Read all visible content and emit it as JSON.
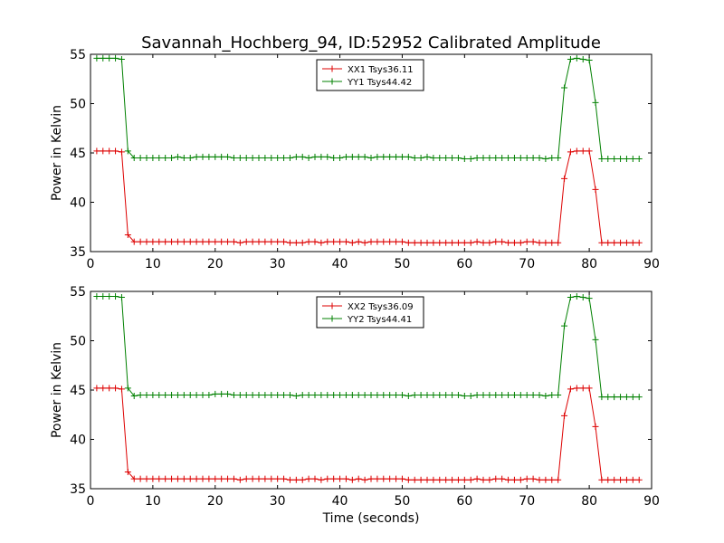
{
  "figure": {
    "title": "Savannah_Hochberg_94, ID:52952 Calibrated Amplitude"
  },
  "chart_data": [
    {
      "type": "line",
      "title": "Savannah_Hochberg_94, ID:52952 Calibrated Amplitude",
      "xlabel": "",
      "ylabel": "Power in Kelvin",
      "xlim": [
        0,
        90
      ],
      "ylim": [
        35,
        55
      ],
      "xticks": [
        "0",
        "10",
        "20",
        "30",
        "40",
        "50",
        "60",
        "70",
        "80",
        "90"
      ],
      "yticks": [
        "35",
        "40",
        "45",
        "50",
        "55"
      ],
      "grid": false,
      "legend": "top-center",
      "x": [
        1,
        2,
        3,
        4,
        5,
        6,
        7,
        8,
        9,
        10,
        11,
        12,
        13,
        14,
        15,
        16,
        17,
        18,
        19,
        20,
        21,
        22,
        23,
        24,
        25,
        26,
        27,
        28,
        29,
        30,
        31,
        32,
        33,
        34,
        35,
        36,
        37,
        38,
        39,
        40,
        41,
        42,
        43,
        44,
        45,
        46,
        47,
        48,
        49,
        50,
        51,
        52,
        53,
        54,
        55,
        56,
        57,
        58,
        59,
        60,
        61,
        62,
        63,
        64,
        65,
        66,
        67,
        68,
        69,
        70,
        71,
        72,
        73,
        74,
        75,
        76,
        77,
        78,
        79,
        80,
        81,
        82,
        83,
        84,
        85,
        86,
        87,
        88
      ],
      "series": [
        {
          "name": "XX1 Tsys36.11",
          "color": "#dd0000",
          "values": [
            45.2,
            45.2,
            45.2,
            45.2,
            45.1,
            36.7,
            36.0,
            36.0,
            36.0,
            36.0,
            36.0,
            36.0,
            36.0,
            36.0,
            36.0,
            36.0,
            36.0,
            36.0,
            36.0,
            36.0,
            36.0,
            36.0,
            36.0,
            35.9,
            36.0,
            36.0,
            36.0,
            36.0,
            36.0,
            36.0,
            36.0,
            35.9,
            35.9,
            35.9,
            36.0,
            36.0,
            35.9,
            36.0,
            36.0,
            36.0,
            36.0,
            35.9,
            36.0,
            35.9,
            36.0,
            36.0,
            36.0,
            36.0,
            36.0,
            36.0,
            35.9,
            35.9,
            35.9,
            35.9,
            35.9,
            35.9,
            35.9,
            35.9,
            35.9,
            35.9,
            35.9,
            36.0,
            35.9,
            35.9,
            36.0,
            36.0,
            35.9,
            35.9,
            35.9,
            36.0,
            36.0,
            35.9,
            35.9,
            35.9,
            35.9,
            42.4,
            45.1,
            45.2,
            45.2,
            45.2,
            41.3,
            35.9,
            35.9,
            35.9,
            35.9,
            35.9,
            35.9,
            35.9
          ]
        },
        {
          "name": "YY1 Tsys44.42",
          "color": "#008000",
          "values": [
            54.6,
            54.6,
            54.6,
            54.6,
            54.5,
            45.2,
            44.5,
            44.5,
            44.5,
            44.5,
            44.5,
            44.5,
            44.5,
            44.6,
            44.5,
            44.5,
            44.6,
            44.6,
            44.6,
            44.6,
            44.6,
            44.6,
            44.5,
            44.5,
            44.5,
            44.5,
            44.5,
            44.5,
            44.5,
            44.5,
            44.5,
            44.5,
            44.6,
            44.6,
            44.5,
            44.6,
            44.6,
            44.6,
            44.5,
            44.5,
            44.6,
            44.6,
            44.6,
            44.6,
            44.5,
            44.6,
            44.6,
            44.6,
            44.6,
            44.6,
            44.6,
            44.5,
            44.5,
            44.6,
            44.5,
            44.5,
            44.5,
            44.5,
            44.5,
            44.4,
            44.4,
            44.5,
            44.5,
            44.5,
            44.5,
            44.5,
            44.5,
            44.5,
            44.5,
            44.5,
            44.5,
            44.5,
            44.4,
            44.5,
            44.5,
            51.6,
            54.5,
            54.6,
            54.5,
            54.4,
            50.1,
            44.4,
            44.4,
            44.4,
            44.4,
            44.4,
            44.4,
            44.4
          ]
        }
      ]
    },
    {
      "type": "line",
      "title": "",
      "xlabel": "Time (seconds)",
      "ylabel": "Power in Kelvin",
      "xlim": [
        0,
        90
      ],
      "ylim": [
        35,
        55
      ],
      "xticks": [
        "0",
        "10",
        "20",
        "30",
        "40",
        "50",
        "60",
        "70",
        "80",
        "90"
      ],
      "yticks": [
        "35",
        "40",
        "45",
        "50",
        "55"
      ],
      "grid": false,
      "legend": "top-center",
      "x": [
        1,
        2,
        3,
        4,
        5,
        6,
        7,
        8,
        9,
        10,
        11,
        12,
        13,
        14,
        15,
        16,
        17,
        18,
        19,
        20,
        21,
        22,
        23,
        24,
        25,
        26,
        27,
        28,
        29,
        30,
        31,
        32,
        33,
        34,
        35,
        36,
        37,
        38,
        39,
        40,
        41,
        42,
        43,
        44,
        45,
        46,
        47,
        48,
        49,
        50,
        51,
        52,
        53,
        54,
        55,
        56,
        57,
        58,
        59,
        60,
        61,
        62,
        63,
        64,
        65,
        66,
        67,
        68,
        69,
        70,
        71,
        72,
        73,
        74,
        75,
        76,
        77,
        78,
        79,
        80,
        81,
        82,
        83,
        84,
        85,
        86,
        87,
        88
      ],
      "series": [
        {
          "name": "XX2 Tsys36.09",
          "color": "#dd0000",
          "values": [
            45.2,
            45.2,
            45.2,
            45.2,
            45.1,
            36.7,
            36.0,
            36.0,
            36.0,
            36.0,
            36.0,
            36.0,
            36.0,
            36.0,
            36.0,
            36.0,
            36.0,
            36.0,
            36.0,
            36.0,
            36.0,
            36.0,
            36.0,
            35.9,
            36.0,
            36.0,
            36.0,
            36.0,
            36.0,
            36.0,
            36.0,
            35.9,
            35.9,
            35.9,
            36.0,
            36.0,
            35.9,
            36.0,
            36.0,
            36.0,
            36.0,
            35.9,
            36.0,
            35.9,
            36.0,
            36.0,
            36.0,
            36.0,
            36.0,
            36.0,
            35.9,
            35.9,
            35.9,
            35.9,
            35.9,
            35.9,
            35.9,
            35.9,
            35.9,
            35.9,
            35.9,
            36.0,
            35.9,
            35.9,
            36.0,
            36.0,
            35.9,
            35.9,
            35.9,
            36.0,
            36.0,
            35.9,
            35.9,
            35.9,
            35.9,
            42.4,
            45.1,
            45.2,
            45.2,
            45.2,
            41.3,
            35.9,
            35.9,
            35.9,
            35.9,
            35.9,
            35.9,
            35.9
          ]
        },
        {
          "name": "YY2 Tsys44.41",
          "color": "#008000",
          "values": [
            54.5,
            54.5,
            54.5,
            54.5,
            54.4,
            45.2,
            44.4,
            44.5,
            44.5,
            44.5,
            44.5,
            44.5,
            44.5,
            44.5,
            44.5,
            44.5,
            44.5,
            44.5,
            44.5,
            44.6,
            44.6,
            44.6,
            44.5,
            44.5,
            44.5,
            44.5,
            44.5,
            44.5,
            44.5,
            44.5,
            44.5,
            44.5,
            44.4,
            44.5,
            44.5,
            44.5,
            44.5,
            44.5,
            44.5,
            44.5,
            44.5,
            44.5,
            44.5,
            44.5,
            44.5,
            44.5,
            44.5,
            44.5,
            44.5,
            44.5,
            44.4,
            44.5,
            44.5,
            44.5,
            44.5,
            44.5,
            44.5,
            44.5,
            44.5,
            44.4,
            44.4,
            44.5,
            44.5,
            44.5,
            44.5,
            44.5,
            44.5,
            44.5,
            44.5,
            44.5,
            44.5,
            44.5,
            44.4,
            44.5,
            44.5,
            51.5,
            54.4,
            54.5,
            54.4,
            54.3,
            50.1,
            44.3,
            44.3,
            44.3,
            44.3,
            44.3,
            44.3,
            44.3
          ]
        }
      ]
    }
  ]
}
